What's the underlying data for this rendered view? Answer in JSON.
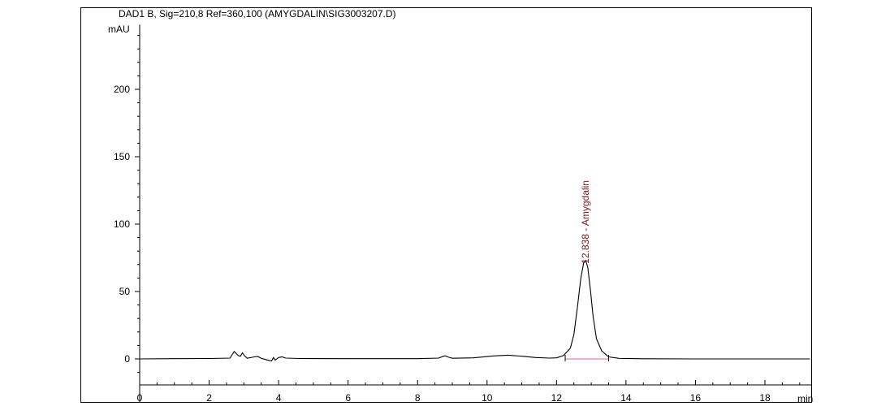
{
  "chart_data": {
    "type": "line",
    "title": "DAD1 B, Sig=210,8 Ref=360,100 (AMYGDALIN\\SIG3003207.D)",
    "ylabel": "mAU",
    "xlabel": "min",
    "xlim": [
      0,
      19.3
    ],
    "ylim": [
      -18,
      248
    ],
    "x_ticks": [
      0,
      2,
      4,
      6,
      8,
      10,
      12,
      14,
      16,
      18
    ],
    "y_ticks": [
      0,
      50,
      100,
      150,
      200
    ],
    "grid": false,
    "legend": "none",
    "series_color": "#000000",
    "baseline_color": "#e060b0",
    "label_color": "#7a1a1a",
    "series": [
      {
        "x": [
          0,
          1.0,
          2.0,
          2.6,
          2.72,
          2.78,
          2.84,
          2.9,
          2.96,
          3.02,
          3.1,
          3.3,
          3.4,
          3.5,
          3.7,
          3.8,
          3.85,
          3.9,
          4.0,
          4.1,
          4.2,
          4.6,
          6.0,
          8.0,
          8.6,
          8.75,
          8.8,
          8.9,
          9.0,
          9.6,
          10.2,
          10.6,
          11.0,
          11.4,
          11.8,
          12.0,
          12.2,
          12.4,
          12.5,
          12.6,
          12.7,
          12.78,
          12.84,
          12.9,
          12.98,
          13.05,
          13.15,
          13.3,
          13.5,
          13.8,
          14.5,
          16.0,
          18.0,
          19.3
        ],
        "y": [
          0,
          0.2,
          0.3,
          0.6,
          5.5,
          4.0,
          2.5,
          2.0,
          4.5,
          2.2,
          0.5,
          1.5,
          1.8,
          0.5,
          -1.0,
          -1.5,
          1.0,
          -0.8,
          1.0,
          1.5,
          0.6,
          0.3,
          0.2,
          0.2,
          0.6,
          2.0,
          2.3,
          1.2,
          0.5,
          0.8,
          2.2,
          2.8,
          2.0,
          1.0,
          0.6,
          0.8,
          2.5,
          8.0,
          18.0,
          38.0,
          60.0,
          71.0,
          73.0,
          68.0,
          50.0,
          32.0,
          15.0,
          6.0,
          1.5,
          0.4,
          0.1,
          0,
          0,
          0
        ]
      }
    ],
    "annotations": [
      {
        "text": "12.838 -  Amygdalin",
        "x": 12.838,
        "y": 73
      }
    ],
    "integration_baseline": {
      "x": [
        12.25,
        13.5
      ],
      "y": [
        0,
        0
      ]
    },
    "integration_markers": [
      12.25,
      13.5
    ]
  }
}
